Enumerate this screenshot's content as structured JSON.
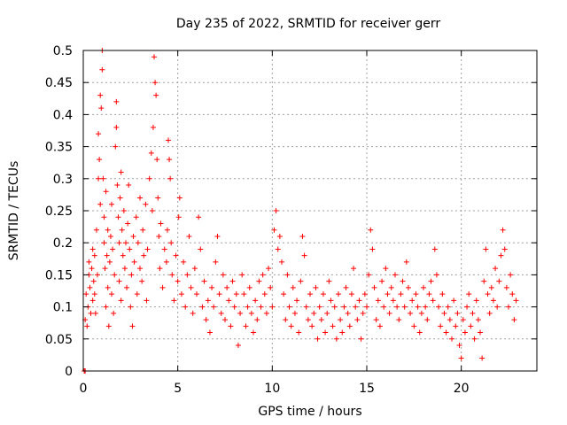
{
  "chart_data": {
    "type": "scatter",
    "title": "Day 235 of 2022, SRMTID for receiver gerr",
    "xlabel": "GPS time / hours",
    "ylabel": "SRMTID / TECUs",
    "xlim": [
      0,
      24
    ],
    "ylim": [
      0,
      0.5
    ],
    "xticks": [
      0,
      5,
      10,
      15,
      20
    ],
    "xtick_labels": [
      "0",
      "5",
      "10",
      "15",
      "20"
    ],
    "yticks": [
      0,
      0.05,
      0.1,
      0.15,
      0.2,
      0.25,
      0.3,
      0.35,
      0.4,
      0.45,
      0.5
    ],
    "ytick_labels": [
      "0",
      "0.05",
      "0.1",
      "0.15",
      "0.2",
      "0.25",
      "0.3",
      "0.35",
      "0.4",
      "0.45",
      "0.5"
    ],
    "grid": true,
    "marker": "plus",
    "color": "#ff0000",
    "points": [
      [
        0.05,
        0.0
      ],
      [
        0.1,
        0.0
      ],
      [
        0.1,
        0.08
      ],
      [
        0.15,
        0.12
      ],
      [
        0.2,
        0.07
      ],
      [
        0.25,
        0.1
      ],
      [
        0.3,
        0.15
      ],
      [
        0.3,
        0.17
      ],
      [
        0.35,
        0.13
      ],
      [
        0.4,
        0.09
      ],
      [
        0.45,
        0.16
      ],
      [
        0.5,
        0.11
      ],
      [
        0.5,
        0.19
      ],
      [
        0.55,
        0.14
      ],
      [
        0.6,
        0.12
      ],
      [
        0.6,
        0.18
      ],
      [
        0.65,
        0.09
      ],
      [
        0.7,
        0.22
      ],
      [
        0.75,
        0.15
      ],
      [
        0.8,
        0.3
      ],
      [
        0.8,
        0.37
      ],
      [
        0.85,
        0.33
      ],
      [
        0.9,
        0.26
      ],
      [
        0.9,
        0.43
      ],
      [
        0.95,
        0.41
      ],
      [
        1.0,
        0.47
      ],
      [
        1.0,
        0.5
      ],
      [
        1.05,
        0.3
      ],
      [
        1.1,
        0.2
      ],
      [
        1.1,
        0.24
      ],
      [
        1.15,
        0.16
      ],
      [
        1.2,
        0.1
      ],
      [
        1.2,
        0.28
      ],
      [
        1.25,
        0.18
      ],
      [
        1.3,
        0.13
      ],
      [
        1.3,
        0.22
      ],
      [
        1.35,
        0.07
      ],
      [
        1.4,
        0.17
      ],
      [
        1.45,
        0.21
      ],
      [
        1.5,
        0.12
      ],
      [
        1.5,
        0.26
      ],
      [
        1.55,
        0.19
      ],
      [
        1.6,
        0.09
      ],
      [
        1.65,
        0.15
      ],
      [
        1.7,
        0.35
      ],
      [
        1.75,
        0.42
      ],
      [
        1.75,
        0.38
      ],
      [
        1.8,
        0.29
      ],
      [
        1.85,
        0.24
      ],
      [
        1.9,
        0.2
      ],
      [
        1.9,
        0.14
      ],
      [
        1.95,
        0.27
      ],
      [
        2.0,
        0.31
      ],
      [
        2.0,
        0.11
      ],
      [
        2.05,
        0.22
      ],
      [
        2.1,
        0.18
      ],
      [
        2.15,
        0.25
      ],
      [
        2.2,
        0.16
      ],
      [
        2.25,
        0.2
      ],
      [
        2.3,
        0.13
      ],
      [
        2.35,
        0.23
      ],
      [
        2.4,
        0.29
      ],
      [
        2.45,
        0.19
      ],
      [
        2.5,
        0.1
      ],
      [
        2.55,
        0.15
      ],
      [
        2.6,
        0.07
      ],
      [
        2.65,
        0.21
      ],
      [
        2.7,
        0.17
      ],
      [
        2.8,
        0.24
      ],
      [
        2.85,
        0.12
      ],
      [
        2.9,
        0.2
      ],
      [
        3.0,
        0.27
      ],
      [
        3.0,
        0.16
      ],
      [
        3.1,
        0.14
      ],
      [
        3.15,
        0.22
      ],
      [
        3.2,
        0.18
      ],
      [
        3.3,
        0.26
      ],
      [
        3.35,
        0.11
      ],
      [
        3.4,
        0.19
      ],
      [
        3.5,
        0.3
      ],
      [
        3.6,
        0.34
      ],
      [
        3.65,
        0.25
      ],
      [
        3.7,
        0.38
      ],
      [
        3.75,
        0.49
      ],
      [
        3.8,
        0.45
      ],
      [
        3.85,
        0.43
      ],
      [
        3.9,
        0.33
      ],
      [
        3.95,
        0.27
      ],
      [
        4.0,
        0.21
      ],
      [
        4.05,
        0.16
      ],
      [
        4.1,
        0.23
      ],
      [
        4.2,
        0.13
      ],
      [
        4.3,
        0.19
      ],
      [
        4.4,
        0.17
      ],
      [
        4.45,
        0.22
      ],
      [
        4.5,
        0.36
      ],
      [
        4.55,
        0.33
      ],
      [
        4.6,
        0.3
      ],
      [
        4.65,
        0.2
      ],
      [
        4.7,
        0.15
      ],
      [
        4.8,
        0.11
      ],
      [
        4.9,
        0.18
      ],
      [
        5.0,
        0.14
      ],
      [
        5.05,
        0.24
      ],
      [
        5.1,
        0.27
      ],
      [
        5.2,
        0.12
      ],
      [
        5.3,
        0.17
      ],
      [
        5.4,
        0.1
      ],
      [
        5.5,
        0.15
      ],
      [
        5.6,
        0.21
      ],
      [
        5.7,
        0.13
      ],
      [
        5.8,
        0.09
      ],
      [
        5.9,
        0.16
      ],
      [
        6.0,
        0.12
      ],
      [
        6.1,
        0.24
      ],
      [
        6.2,
        0.19
      ],
      [
        6.3,
        0.1
      ],
      [
        6.4,
        0.14
      ],
      [
        6.5,
        0.08
      ],
      [
        6.6,
        0.11
      ],
      [
        6.7,
        0.06
      ],
      [
        6.8,
        0.13
      ],
      [
        6.9,
        0.1
      ],
      [
        7.0,
        0.17
      ],
      [
        7.1,
        0.21
      ],
      [
        7.2,
        0.12
      ],
      [
        7.3,
        0.09
      ],
      [
        7.4,
        0.15
      ],
      [
        7.5,
        0.08
      ],
      [
        7.6,
        0.13
      ],
      [
        7.7,
        0.11
      ],
      [
        7.8,
        0.07
      ],
      [
        7.9,
        0.14
      ],
      [
        8.0,
        0.1
      ],
      [
        8.1,
        0.12
      ],
      [
        8.2,
        0.04
      ],
      [
        8.3,
        0.09
      ],
      [
        8.4,
        0.15
      ],
      [
        8.5,
        0.12
      ],
      [
        8.6,
        0.07
      ],
      [
        8.7,
        0.1
      ],
      [
        8.8,
        0.13
      ],
      [
        8.9,
        0.09
      ],
      [
        9.0,
        0.06
      ],
      [
        9.1,
        0.11
      ],
      [
        9.2,
        0.08
      ],
      [
        9.3,
        0.14
      ],
      [
        9.4,
        0.1
      ],
      [
        9.5,
        0.15
      ],
      [
        9.6,
        0.12
      ],
      [
        9.7,
        0.09
      ],
      [
        9.8,
        0.16
      ],
      [
        9.9,
        0.13
      ],
      [
        10.0,
        0.1
      ],
      [
        10.1,
        0.22
      ],
      [
        10.2,
        0.25
      ],
      [
        10.3,
        0.19
      ],
      [
        10.4,
        0.21
      ],
      [
        10.5,
        0.17
      ],
      [
        10.6,
        0.12
      ],
      [
        10.7,
        0.08
      ],
      [
        10.8,
        0.15
      ],
      [
        10.9,
        0.1
      ],
      [
        11.0,
        0.07
      ],
      [
        11.1,
        0.13
      ],
      [
        11.2,
        0.09
      ],
      [
        11.3,
        0.11
      ],
      [
        11.4,
        0.06
      ],
      [
        11.5,
        0.14
      ],
      [
        11.6,
        0.21
      ],
      [
        11.7,
        0.18
      ],
      [
        11.8,
        0.1
      ],
      [
        11.9,
        0.08
      ],
      [
        12.0,
        0.12
      ],
      [
        12.1,
        0.07
      ],
      [
        12.2,
        0.09
      ],
      [
        12.3,
        0.13
      ],
      [
        12.4,
        0.05
      ],
      [
        12.5,
        0.1
      ],
      [
        12.6,
        0.08
      ],
      [
        12.7,
        0.12
      ],
      [
        12.8,
        0.06
      ],
      [
        12.9,
        0.09
      ],
      [
        13.0,
        0.14
      ],
      [
        13.1,
        0.11
      ],
      [
        13.2,
        0.07
      ],
      [
        13.3,
        0.1
      ],
      [
        13.4,
        0.05
      ],
      [
        13.5,
        0.12
      ],
      [
        13.6,
        0.08
      ],
      [
        13.7,
        0.06
      ],
      [
        13.8,
        0.1
      ],
      [
        13.9,
        0.13
      ],
      [
        14.0,
        0.09
      ],
      [
        14.1,
        0.07
      ],
      [
        14.2,
        0.12
      ],
      [
        14.3,
        0.16
      ],
      [
        14.4,
        0.1
      ],
      [
        14.5,
        0.08
      ],
      [
        14.6,
        0.11
      ],
      [
        14.7,
        0.05
      ],
      [
        14.8,
        0.09
      ],
      [
        14.9,
        0.12
      ],
      [
        15.0,
        0.1
      ],
      [
        15.1,
        0.15
      ],
      [
        15.2,
        0.22
      ],
      [
        15.3,
        0.19
      ],
      [
        15.4,
        0.13
      ],
      [
        15.5,
        0.08
      ],
      [
        15.6,
        0.11
      ],
      [
        15.7,
        0.07
      ],
      [
        15.8,
        0.14
      ],
      [
        15.9,
        0.1
      ],
      [
        16.0,
        0.16
      ],
      [
        16.1,
        0.12
      ],
      [
        16.2,
        0.09
      ],
      [
        16.3,
        0.13
      ],
      [
        16.4,
        0.11
      ],
      [
        16.5,
        0.15
      ],
      [
        16.6,
        0.1
      ],
      [
        16.7,
        0.08
      ],
      [
        16.8,
        0.12
      ],
      [
        16.9,
        0.14
      ],
      [
        17.0,
        0.1
      ],
      [
        17.1,
        0.17
      ],
      [
        17.2,
        0.13
      ],
      [
        17.3,
        0.09
      ],
      [
        17.4,
        0.11
      ],
      [
        17.5,
        0.07
      ],
      [
        17.6,
        0.12
      ],
      [
        17.7,
        0.1
      ],
      [
        17.8,
        0.06
      ],
      [
        17.9,
        0.09
      ],
      [
        18.0,
        0.13
      ],
      [
        18.1,
        0.1
      ],
      [
        18.2,
        0.08
      ],
      [
        18.3,
        0.12
      ],
      [
        18.4,
        0.14
      ],
      [
        18.5,
        0.11
      ],
      [
        18.6,
        0.19
      ],
      [
        18.7,
        0.15
      ],
      [
        18.8,
        0.1
      ],
      [
        18.9,
        0.07
      ],
      [
        19.0,
        0.12
      ],
      [
        19.1,
        0.09
      ],
      [
        19.2,
        0.06
      ],
      [
        19.3,
        0.1
      ],
      [
        19.4,
        0.08
      ],
      [
        19.5,
        0.05
      ],
      [
        19.6,
        0.11
      ],
      [
        19.7,
        0.07
      ],
      [
        19.8,
        0.09
      ],
      [
        19.9,
        0.04
      ],
      [
        20.0,
        0.02
      ],
      [
        20.1,
        0.08
      ],
      [
        20.2,
        0.06
      ],
      [
        20.3,
        0.1
      ],
      [
        20.4,
        0.12
      ],
      [
        20.5,
        0.07
      ],
      [
        20.6,
        0.09
      ],
      [
        20.7,
        0.05
      ],
      [
        20.8,
        0.11
      ],
      [
        20.9,
        0.08
      ],
      [
        21.0,
        0.06
      ],
      [
        21.1,
        0.02
      ],
      [
        21.2,
        0.14
      ],
      [
        21.3,
        0.19
      ],
      [
        21.4,
        0.12
      ],
      [
        21.5,
        0.09
      ],
      [
        21.6,
        0.13
      ],
      [
        21.7,
        0.11
      ],
      [
        21.8,
        0.16
      ],
      [
        21.9,
        0.1
      ],
      [
        22.0,
        0.14
      ],
      [
        22.1,
        0.18
      ],
      [
        22.2,
        0.22
      ],
      [
        22.3,
        0.19
      ],
      [
        22.4,
        0.13
      ],
      [
        22.5,
        0.1
      ],
      [
        22.6,
        0.15
      ],
      [
        22.7,
        0.12
      ],
      [
        22.8,
        0.08
      ],
      [
        22.9,
        0.11
      ]
    ]
  }
}
